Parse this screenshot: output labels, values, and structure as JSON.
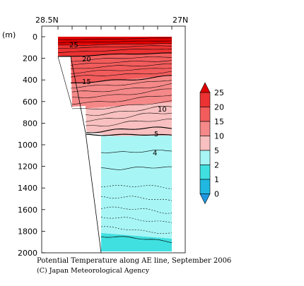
{
  "chart_data": {
    "type": "heatmap",
    "title": "",
    "caption": "Potential Temperature along AE line, September 2006",
    "credit": "(C) Japan Meteorological Agency",
    "ylabel": "(m)",
    "xlabel": "",
    "x_ticks": [
      "28.5N",
      "27N"
    ],
    "y_ticks": [
      "0",
      "200",
      "400",
      "600",
      "800",
      "1000",
      "1200",
      "1400",
      "1600",
      "1800",
      "2000"
    ],
    "ylim": [
      0,
      2000
    ],
    "y_inverted": true,
    "colorbar": {
      "labels": [
        "25",
        "20",
        "15",
        "10",
        "5",
        "2",
        "1",
        "0"
      ],
      "levels": [
        25,
        20,
        15,
        10,
        5,
        2,
        1,
        0
      ],
      "colors": {
        "above25": "#e00000",
        "20to25": "#ec3232",
        "15to20": "#f25c5c",
        "10to15": "#f58888",
        "5to10": "#f8c0c0",
        "2to5": "#a8f5f5",
        "1to2": "#40e0e0",
        "0to1": "#20b8e0",
        "below0": "#2098e0"
      }
    },
    "contour_labels": [
      "25",
      "20",
      "15",
      "10",
      "5",
      "4"
    ],
    "contour_levels": [
      25,
      20,
      15,
      10,
      5,
      4
    ]
  }
}
